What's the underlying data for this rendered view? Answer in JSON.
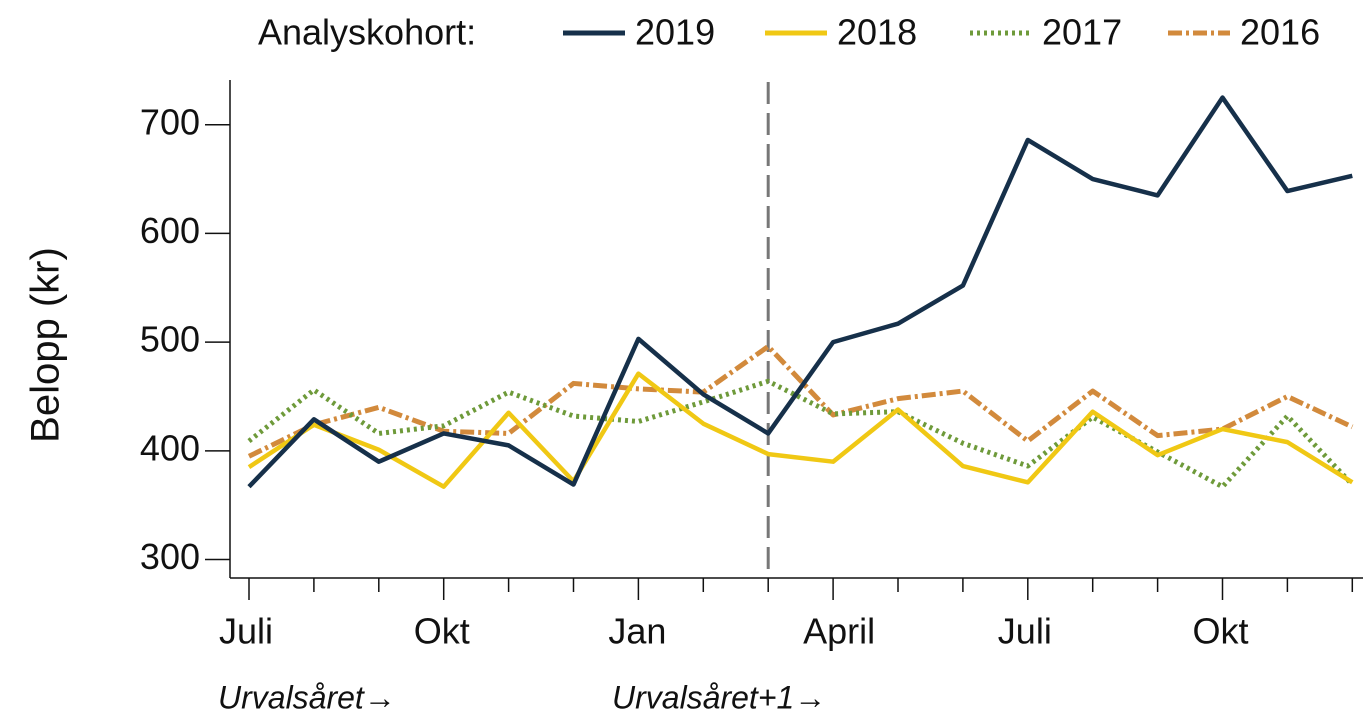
{
  "chart_data": {
    "type": "line",
    "y_label": "Belopp (kr)",
    "legend_title": "Analyskohort:",
    "categories": [
      "Juli",
      null,
      null,
      "Okt",
      null,
      null,
      "Jan",
      null,
      null,
      "April",
      null,
      null,
      "Juli",
      null,
      null,
      "Okt",
      null,
      null
    ],
    "series": [
      {
        "name": "2019",
        "color": "#16304a",
        "dash": "solid",
        "values": [
          367,
          429,
          390,
          416,
          405,
          369,
          503,
          452,
          416,
          500,
          517,
          552,
          686,
          650,
          635,
          725,
          639,
          653
        ]
      },
      {
        "name": "2018",
        "color": "#f0c814",
        "dash": "solid",
        "values": [
          385,
          424,
          401,
          367,
          435,
          372,
          471,
          425,
          397,
          390,
          438,
          386,
          371,
          436,
          396,
          420,
          408,
          371
        ]
      },
      {
        "name": "2017",
        "color": "#6e9a3a",
        "dash": "dotted",
        "values": [
          409,
          456,
          416,
          423,
          454,
          432,
          427,
          445,
          464,
          434,
          436,
          407,
          386,
          431,
          399,
          367,
          432,
          369
        ]
      },
      {
        "name": "2016",
        "color": "#d28a3c",
        "dash": "dashdot",
        "values": [
          395,
          424,
          440,
          418,
          416,
          462,
          457,
          454,
          496,
          433,
          448,
          455,
          409,
          455,
          414,
          420,
          450,
          422
        ]
      }
    ],
    "ylim": [
      283,
      743
    ],
    "yticks": [
      300,
      400,
      500,
      600,
      700
    ],
    "reference_line_index": 8,
    "annotations": [
      "Urvalsåret→",
      "Urvalsåret+1→"
    ]
  }
}
